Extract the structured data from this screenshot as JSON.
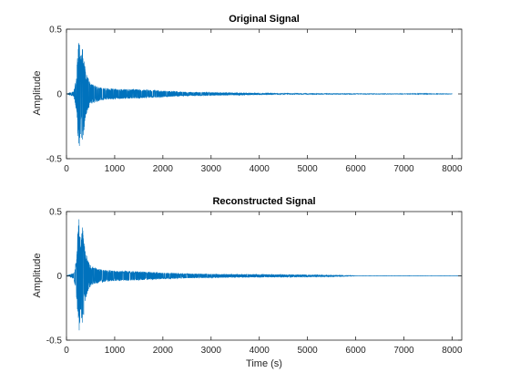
{
  "chart_data": [
    {
      "type": "line",
      "title": "Original Signal",
      "xlabel": "",
      "ylabel": "Amplitude",
      "xlim": [
        0,
        8200
      ],
      "ylim": [
        -0.5,
        0.5
      ],
      "xticks": [
        0,
        1000,
        2000,
        3000,
        4000,
        5000,
        6000,
        7000,
        8000
      ],
      "yticks": [
        -0.5,
        0,
        0.5
      ],
      "grid": false,
      "series_color": "#0072BD",
      "signal_length": 8000,
      "envelope": [
        {
          "x": 0,
          "a": 0.0
        },
        {
          "x": 150,
          "a": 0.02
        },
        {
          "x": 200,
          "a": 0.12
        },
        {
          "x": 230,
          "a": 0.32
        },
        {
          "x": 260,
          "a": 0.44
        },
        {
          "x": 300,
          "a": 0.28
        },
        {
          "x": 330,
          "a": 0.41
        },
        {
          "x": 380,
          "a": 0.22
        },
        {
          "x": 430,
          "a": 0.14
        },
        {
          "x": 500,
          "a": 0.08
        },
        {
          "x": 700,
          "a": 0.05
        },
        {
          "x": 1000,
          "a": 0.04
        },
        {
          "x": 1500,
          "a": 0.035
        },
        {
          "x": 2000,
          "a": 0.025
        },
        {
          "x": 2500,
          "a": 0.015
        },
        {
          "x": 3000,
          "a": 0.012
        },
        {
          "x": 3600,
          "a": 0.008
        },
        {
          "x": 4500,
          "a": 0.004
        },
        {
          "x": 5500,
          "a": 0.003
        },
        {
          "x": 7000,
          "a": 0.002
        },
        {
          "x": 8000,
          "a": 0.001
        }
      ]
    },
    {
      "type": "line",
      "title": "Reconstructed Signal",
      "xlabel": "Time (s)",
      "ylabel": "Amplitude",
      "xlim": [
        0,
        8200
      ],
      "ylim": [
        -0.5,
        0.5
      ],
      "xticks": [
        0,
        1000,
        2000,
        3000,
        4000,
        5000,
        6000,
        7000,
        8000
      ],
      "yticks": [
        -0.5,
        0,
        0.5
      ],
      "grid": false,
      "series_color": "#0072BD",
      "signal_length": 8200,
      "envelope": [
        {
          "x": 0,
          "a": 0.0
        },
        {
          "x": 150,
          "a": 0.02
        },
        {
          "x": 200,
          "a": 0.12
        },
        {
          "x": 230,
          "a": 0.32
        },
        {
          "x": 260,
          "a": 0.44
        },
        {
          "x": 300,
          "a": 0.28
        },
        {
          "x": 330,
          "a": 0.41
        },
        {
          "x": 380,
          "a": 0.22
        },
        {
          "x": 430,
          "a": 0.14
        },
        {
          "x": 500,
          "a": 0.08
        },
        {
          "x": 700,
          "a": 0.05
        },
        {
          "x": 1000,
          "a": 0.04
        },
        {
          "x": 1500,
          "a": 0.035
        },
        {
          "x": 2000,
          "a": 0.025
        },
        {
          "x": 2500,
          "a": 0.018
        },
        {
          "x": 3000,
          "a": 0.015
        },
        {
          "x": 3600,
          "a": 0.012
        },
        {
          "x": 4500,
          "a": 0.01
        },
        {
          "x": 5500,
          "a": 0.006
        },
        {
          "x": 5800,
          "a": 0.003
        },
        {
          "x": 6000,
          "a": 0.0005
        },
        {
          "x": 8200,
          "a": 0.0003
        }
      ]
    }
  ]
}
